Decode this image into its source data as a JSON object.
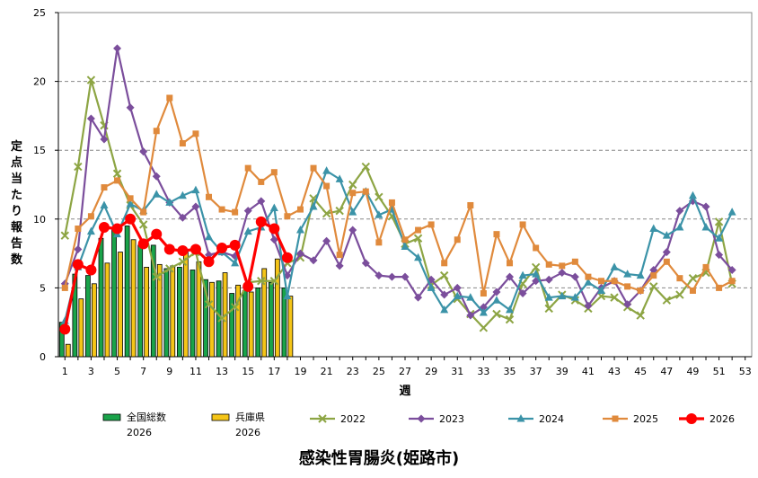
{
  "chart_data": {
    "type": "bar",
    "title": "感染性胃腸炎(姫路市)",
    "ylabel": "定点当たり報告数",
    "xlabel": "週",
    "ylim": [
      0,
      25
    ],
    "y_ticks": [
      0,
      5,
      10,
      15,
      20,
      25
    ],
    "xlim": [
      0.5,
      53.5
    ],
    "x_ticks": [
      1,
      3,
      5,
      7,
      9,
      11,
      13,
      15,
      17,
      19,
      21,
      23,
      25,
      27,
      29,
      31,
      33,
      35,
      37,
      39,
      41,
      43,
      45,
      47,
      49,
      51,
      53
    ],
    "grid": true,
    "legend_position": "bottom",
    "bar_series": [
      {
        "name": "全国総数\n2026",
        "color": "#1aa34a",
        "x": [
          1,
          2,
          3,
          4,
          5,
          6,
          7,
          8,
          9,
          10,
          11,
          12,
          13,
          14,
          15,
          16,
          17,
          18
        ],
        "values": [
          2.5,
          6.0,
          5.9,
          8.6,
          9.4,
          9.5,
          8.1,
          8.1,
          6.4,
          6.5,
          6.3,
          5.6,
          5.5,
          4.6,
          4.8,
          5.0,
          5.4,
          5.0
        ]
      },
      {
        "name": "兵庫県\n2026",
        "color": "#f5c518",
        "x": [
          1,
          2,
          3,
          4,
          5,
          6,
          7,
          8,
          9,
          10,
          11,
          12,
          13,
          14,
          15,
          16,
          17,
          18
        ],
        "values": [
          0.9,
          4.2,
          5.3,
          6.8,
          7.6,
          8.5,
          6.5,
          6.7,
          6.6,
          7.6,
          6.9,
          5.4,
          6.1,
          5.2,
          4.7,
          6.4,
          7.1,
          4.4
        ]
      }
    ],
    "line_series": [
      {
        "name": "2022",
        "color": "#8da544",
        "marker": "x",
        "x": [
          1,
          2,
          3,
          4,
          5,
          6,
          7,
          8,
          9,
          10,
          11,
          12,
          13,
          14,
          15,
          16,
          17,
          18,
          19,
          20,
          21,
          22,
          23,
          24,
          25,
          26,
          27,
          28,
          29,
          30,
          31,
          32,
          33,
          34,
          35,
          36,
          37,
          38,
          39,
          40,
          41,
          42,
          43,
          44,
          45,
          46,
          47,
          48,
          49,
          50,
          51,
          52
        ],
        "values": [
          8.8,
          13.8,
          20.1,
          16.8,
          13.3,
          11.0,
          9.6,
          5.8,
          6.4,
          6.9,
          7.6,
          3.8,
          2.8,
          3.6,
          5.4,
          5.5,
          5.5,
          6.8,
          7.2,
          11.5,
          10.4,
          10.6,
          12.5,
          13.8,
          11.6,
          10.2,
          8.2,
          8.6,
          5.2,
          5.9,
          4.2,
          3.1,
          2.1,
          3.1,
          2.7,
          5.3,
          6.5,
          3.5,
          4.5,
          4.1,
          3.5,
          4.4,
          4.3,
          3.6,
          3.0,
          5.1,
          4.1,
          4.5,
          5.7,
          6.1,
          9.8,
          5.3
        ]
      },
      {
        "name": "2023",
        "color": "#7b4e9c",
        "marker": "diamond",
        "x": [
          1,
          2,
          3,
          4,
          5,
          6,
          7,
          8,
          9,
          10,
          11,
          12,
          13,
          14,
          15,
          16,
          17,
          18,
          19,
          20,
          21,
          22,
          23,
          24,
          25,
          26,
          27,
          28,
          29,
          30,
          31,
          32,
          33,
          34,
          35,
          36,
          37,
          38,
          39,
          40,
          41,
          42,
          43,
          44,
          45,
          46,
          47,
          48,
          49,
          50,
          51,
          52
        ],
        "values": [
          5.3,
          7.8,
          17.3,
          15.8,
          22.4,
          18.1,
          14.9,
          13.1,
          11.2,
          10.1,
          10.9,
          7.4,
          7.6,
          7.3,
          10.6,
          11.3,
          8.5,
          5.9,
          7.5,
          7.0,
          8.4,
          6.6,
          9.2,
          6.8,
          5.9,
          5.8,
          5.8,
          4.3,
          5.6,
          4.5,
          5.0,
          3.0,
          3.6,
          4.7,
          5.8,
          4.6,
          5.5,
          5.6,
          6.1,
          5.8,
          3.7,
          5.0,
          5.5,
          3.8,
          4.8,
          6.3,
          7.6,
          10.6,
          11.3,
          10.9,
          7.4,
          6.3
        ]
      },
      {
        "name": "2024",
        "color": "#3b93a8",
        "marker": "triangle",
        "x": [
          1,
          2,
          3,
          4,
          5,
          6,
          7,
          8,
          9,
          10,
          11,
          12,
          13,
          14,
          15,
          16,
          17,
          18,
          19,
          20,
          21,
          22,
          23,
          24,
          25,
          26,
          27,
          28,
          29,
          30,
          31,
          32,
          33,
          34,
          35,
          36,
          37,
          38,
          39,
          40,
          41,
          42,
          43,
          44,
          45,
          46,
          47,
          48,
          49,
          50,
          51,
          52
        ],
        "values": [
          2.6,
          6.5,
          9.1,
          11.0,
          8.9,
          11.1,
          10.6,
          11.8,
          11.2,
          11.7,
          12.1,
          8.7,
          7.6,
          6.8,
          9.1,
          9.4,
          10.8,
          4.4,
          9.2,
          10.9,
          13.5,
          12.9,
          10.5,
          12.0,
          10.3,
          10.7,
          8.0,
          7.2,
          5.0,
          3.4,
          4.4,
          4.3,
          3.2,
          4.1,
          3.4,
          5.9,
          6.0,
          4.3,
          4.4,
          4.3,
          5.4,
          4.8,
          6.5,
          6.0,
          5.9,
          9.3,
          8.8,
          9.4,
          11.7,
          9.4,
          8.6,
          10.5
        ]
      },
      {
        "name": "2025",
        "color": "#e08a3c",
        "marker": "square",
        "x": [
          1,
          2,
          3,
          4,
          5,
          6,
          7,
          8,
          9,
          10,
          11,
          12,
          13,
          14,
          15,
          16,
          17,
          18,
          19,
          20,
          21,
          22,
          23,
          24,
          25,
          26,
          27,
          28,
          29,
          30,
          31,
          32,
          33,
          34,
          35,
          36,
          37,
          38,
          39,
          40,
          41,
          42,
          43,
          44,
          45,
          46,
          47,
          48,
          49,
          50,
          51,
          52
        ],
        "values": [
          5.0,
          9.3,
          10.2,
          12.3,
          12.8,
          11.5,
          10.5,
          16.4,
          18.8,
          15.5,
          16.2,
          11.6,
          10.7,
          10.5,
          13.7,
          12.7,
          13.4,
          10.2,
          10.7,
          13.7,
          12.4,
          7.4,
          11.9,
          12.0,
          8.3,
          11.2,
          8.5,
          9.2,
          9.6,
          6.8,
          8.5,
          11.0,
          4.6,
          8.9,
          6.8,
          9.6,
          7.9,
          6.7,
          6.6,
          6.9,
          5.8,
          5.5,
          5.5,
          5.1,
          4.8,
          5.9,
          6.9,
          5.7,
          4.8,
          6.5,
          5.0,
          5.5
        ]
      },
      {
        "name": "2026",
        "color": "#ff0000",
        "marker": "circle",
        "x": [
          1,
          2,
          3,
          4,
          5,
          6,
          7,
          8,
          9,
          10,
          11,
          12,
          13,
          14,
          15,
          16,
          17,
          18
        ],
        "values": [
          2.0,
          6.7,
          6.3,
          9.4,
          9.3,
          10.0,
          8.2,
          8.9,
          7.8,
          7.7,
          7.8,
          6.9,
          7.9,
          8.1,
          5.1,
          9.8,
          9.3,
          7.2
        ]
      }
    ]
  }
}
